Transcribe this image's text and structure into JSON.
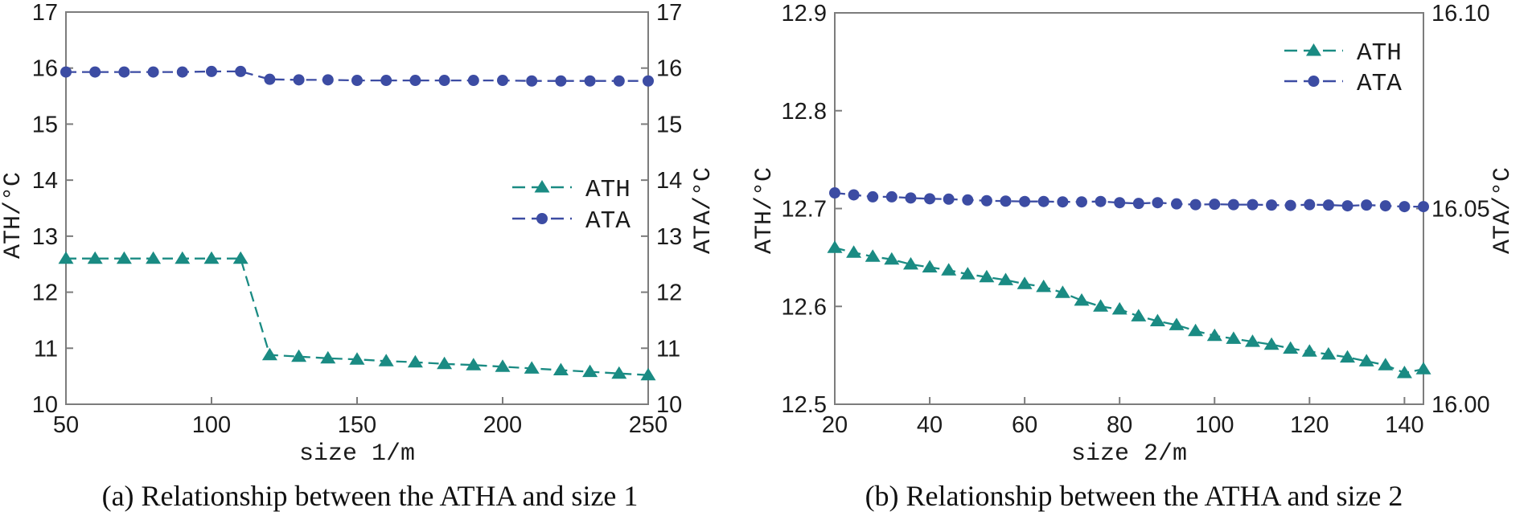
{
  "page": {
    "background": "#ffffff"
  },
  "colors": {
    "ath_series": "#1a8b83",
    "ata_series": "#3c4ca3",
    "axis_line": "#7c7c7c",
    "text": "#1b1b1b"
  },
  "chart_data": [
    {
      "type": "line",
      "caption": "(a) Relationship between the ATHA and size 1",
      "xlabel": "size 1/m",
      "ylabel_left": "ATH/°C",
      "ylabel_right": "ATA/°C",
      "xlim": [
        50,
        250
      ],
      "x_tick_values": [
        50,
        100,
        150,
        200,
        250
      ],
      "x_tick_labels": [
        "50",
        "100",
        "150",
        "200",
        "250"
      ],
      "ylim_left": [
        10,
        17
      ],
      "y_tick_values_left": [
        10,
        11,
        12,
        13,
        14,
        15,
        16,
        17
      ],
      "y_tick_labels_left": [
        "10",
        "11",
        "12",
        "13",
        "14",
        "15",
        "16",
        "17"
      ],
      "ylim_right": [
        10,
        17
      ],
      "y_tick_values_right": [
        10,
        11,
        12,
        13,
        14,
        15,
        16,
        17
      ],
      "y_tick_labels_right": [
        "10",
        "11",
        "12",
        "13",
        "14",
        "15",
        "16",
        "17"
      ],
      "grid": false,
      "legend_position": "center-right",
      "legend_entries": [
        "ATH",
        "ATA"
      ],
      "series": [
        {
          "name": "ATH",
          "axis": "left",
          "color": "#1a8b83",
          "marker": "triangle",
          "line_style": "dashed",
          "x": [
            50,
            60,
            70,
            80,
            90,
            100,
            110,
            120,
            130,
            140,
            150,
            160,
            170,
            180,
            190,
            200,
            210,
            220,
            230,
            240,
            250
          ],
          "values": [
            12.6,
            12.6,
            12.6,
            12.6,
            12.6,
            12.6,
            12.6,
            10.88,
            10.85,
            10.82,
            10.8,
            10.77,
            10.75,
            10.72,
            10.7,
            10.67,
            10.64,
            10.61,
            10.58,
            10.55,
            10.52
          ]
        },
        {
          "name": "ATA",
          "axis": "right",
          "color": "#3c4ca3",
          "marker": "circle",
          "line_style": "dashed",
          "x": [
            50,
            60,
            70,
            80,
            90,
            100,
            110,
            120,
            130,
            140,
            150,
            160,
            170,
            180,
            190,
            200,
            210,
            220,
            230,
            240,
            250
          ],
          "values": [
            15.93,
            15.93,
            15.93,
            15.93,
            15.93,
            15.94,
            15.94,
            15.8,
            15.79,
            15.79,
            15.78,
            15.78,
            15.78,
            15.78,
            15.78,
            15.78,
            15.77,
            15.77,
            15.77,
            15.77,
            15.77
          ]
        }
      ]
    },
    {
      "type": "line",
      "caption": "(b) Relationship between the ATHA and size 2",
      "xlabel": "size 2/m",
      "ylabel_left": "ATH/°C",
      "ylabel_right": "ATA/°C",
      "xlim": [
        20,
        144
      ],
      "x_tick_values": [
        20,
        40,
        60,
        80,
        100,
        120,
        140
      ],
      "x_tick_labels": [
        "20",
        "40",
        "60",
        "80",
        "100",
        "120",
        "140"
      ],
      "ylim_left": [
        12.5,
        12.9
      ],
      "y_tick_values_left": [
        12.5,
        12.6,
        12.7,
        12.8,
        12.9
      ],
      "y_tick_labels_left": [
        "12.5",
        "12.6",
        "12.7",
        "12.8",
        "12.9"
      ],
      "ylim_right": [
        16.0,
        16.1
      ],
      "y_tick_values_right": [
        16.0,
        16.05,
        16.1
      ],
      "y_tick_labels_right": [
        "16.00",
        "16.05",
        "16.10"
      ],
      "grid": false,
      "legend_position": "top-right",
      "legend_entries": [
        "ATH",
        "ATA"
      ],
      "series": [
        {
          "name": "ATH",
          "axis": "left",
          "color": "#1a8b83",
          "marker": "triangle",
          "line_style": "dashed",
          "x": [
            20,
            24,
            28,
            32,
            36,
            40,
            44,
            48,
            52,
            56,
            60,
            64,
            68,
            72,
            76,
            80,
            84,
            88,
            92,
            96,
            100,
            104,
            108,
            112,
            116,
            120,
            124,
            128,
            132,
            136,
            140,
            144
          ],
          "values": [
            12.66,
            12.655,
            12.651,
            12.648,
            12.643,
            12.64,
            12.637,
            12.633,
            12.63,
            12.627,
            12.623,
            12.62,
            12.614,
            12.606,
            12.6,
            12.597,
            12.59,
            12.585,
            12.581,
            12.575,
            12.57,
            12.567,
            12.564,
            12.561,
            12.557,
            12.554,
            12.551,
            12.548,
            12.544,
            12.54,
            12.532,
            12.536
          ]
        },
        {
          "name": "ATA",
          "axis": "right",
          "color": "#3c4ca3",
          "marker": "circle",
          "line_style": "dashed",
          "x": [
            20,
            24,
            28,
            32,
            36,
            40,
            44,
            48,
            52,
            56,
            60,
            64,
            68,
            72,
            76,
            80,
            84,
            88,
            92,
            96,
            100,
            104,
            108,
            112,
            116,
            120,
            124,
            128,
            132,
            136,
            140,
            144
          ],
          "values": [
            16.054,
            16.0535,
            16.053,
            16.053,
            16.0527,
            16.0525,
            16.0524,
            16.0522,
            16.052,
            16.0519,
            16.0518,
            16.0518,
            16.0517,
            16.0517,
            16.0518,
            16.0515,
            16.0513,
            16.0515,
            16.0512,
            16.051,
            16.0511,
            16.051,
            16.051,
            16.0509,
            16.0508,
            16.051,
            16.0509,
            16.0507,
            16.0509,
            16.0507,
            16.0505,
            16.0505
          ]
        }
      ]
    }
  ]
}
